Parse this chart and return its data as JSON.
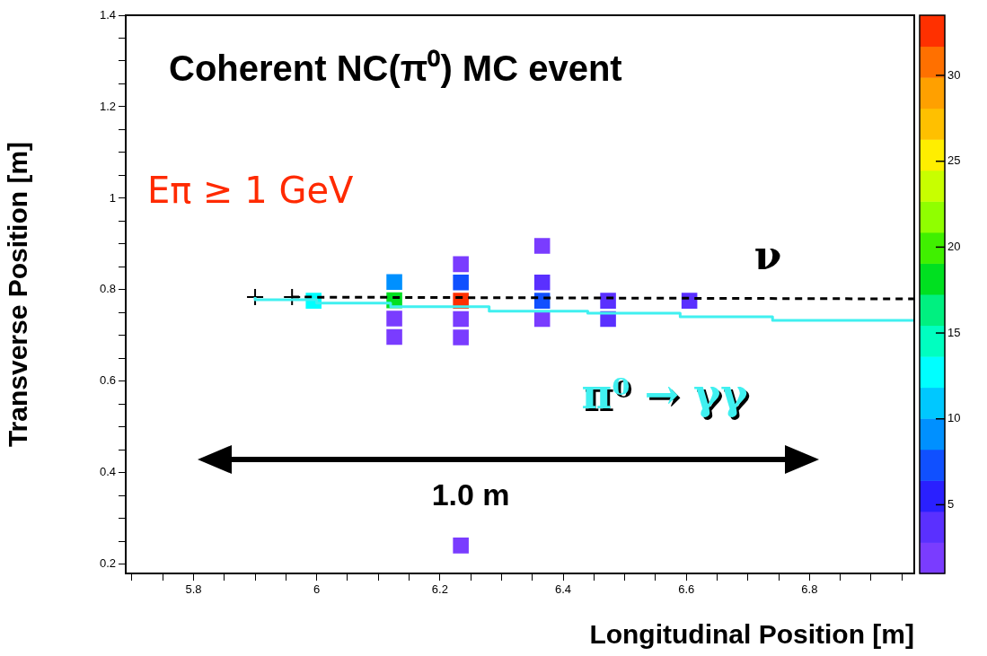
{
  "chart_data": {
    "type": "scatter",
    "title": "Coherent NC(π⁰) MC event",
    "xlabel": "Longitudinal Position [m]",
    "ylabel": "Transverse Position [m]",
    "xlim": [
      5.69,
      6.97
    ],
    "xticks": [
      {
        "value": 5.7,
        "label": null
      },
      {
        "value": 5.75,
        "label": null
      },
      5.8,
      {
        "value": 5.85,
        "label": null
      },
      {
        "value": 5.9,
        "label": null
      },
      {
        "value": 5.95,
        "label": null
      },
      6,
      {
        "value": 6.05,
        "label": null
      },
      {
        "value": 6.1,
        "label": null
      },
      {
        "value": 6.15,
        "label": null
      },
      6.2,
      {
        "value": 6.25,
        "label": null
      },
      {
        "value": 6.3,
        "label": null
      },
      {
        "value": 6.35,
        "label": null
      },
      6.4,
      {
        "value": 6.45,
        "label": null
      },
      {
        "value": 6.5,
        "label": null
      },
      {
        "value": 6.55,
        "label": null
      },
      6.6,
      {
        "value": 6.65,
        "label": null
      },
      {
        "value": 6.7,
        "label": null
      },
      {
        "value": 6.75,
        "label": null
      },
      6.8,
      {
        "value": 6.85,
        "label": null
      },
      {
        "value": 6.9,
        "label": null
      },
      {
        "value": 6.95,
        "label": null
      }
    ],
    "ylim": [
      0.18,
      1.4
    ],
    "yticks": [
      0.2,
      {
        "value": 0.25,
        "label": null
      },
      {
        "value": 0.3,
        "label": null
      },
      {
        "value": 0.35,
        "label": null
      },
      0.4,
      {
        "value": 0.45,
        "label": null
      },
      {
        "value": 0.5,
        "label": null
      },
      {
        "value": 0.55,
        "label": null
      },
      0.6,
      {
        "value": 0.65,
        "label": null
      },
      {
        "value": 0.7,
        "label": null
      },
      {
        "value": 0.75,
        "label": null
      },
      0.8,
      {
        "value": 0.85,
        "label": null
      },
      {
        "value": 0.9,
        "label": null
      },
      {
        "value": 0.95,
        "label": null
      },
      1,
      {
        "value": 1.05,
        "label": null
      },
      {
        "value": 1.1,
        "label": null
      },
      {
        "value": 1.15,
        "label": null
      },
      1.2,
      {
        "value": 1.25,
        "label": null
      },
      {
        "value": 1.3,
        "label": null
      },
      {
        "value": 1.35,
        "label": null
      },
      1.4
    ],
    "clim": [
      1,
      33.5
    ],
    "cticks": [
      5,
      10,
      15,
      20,
      25,
      30
    ],
    "grid": false,
    "legend": false,
    "series": [
      {
        "type": "step",
        "name": "π⁰ → γγ",
        "color": "#40f0f0",
        "x": [
          5.9,
          6.0,
          6.12,
          6.28,
          6.44,
          6.59,
          6.74,
          6.9,
          6.97
        ],
        "values": [
          0.784,
          0.778,
          0.771,
          0.763,
          0.753,
          0.749,
          0.741,
          0.733,
          0.733
        ]
      },
      {
        "type": "line",
        "name": "ν",
        "color": "#000000",
        "line_style": "dashed",
        "marker": "none",
        "x": [
          5.96,
          6.97
        ],
        "values": [
          0.784,
          0.78
        ]
      },
      {
        "marker": "square",
        "colors": [
          "#00ffff",
          "#0090ff",
          "#00e020",
          "#7a3cff",
          "#7a3cff",
          "#7a3cff",
          "#1050ff",
          "#ff3000",
          "#7a3cff",
          "#7a3cff",
          "#7a3cff",
          "#7a3cff",
          "#5a30ff",
          "#1050ff",
          "#7a3cff",
          "#5a30ff",
          "#5a30ff",
          "#5a30ff"
        ],
        "x": [
          5.995,
          6.126,
          6.126,
          6.126,
          6.126,
          6.234,
          6.234,
          6.234,
          6.234,
          6.234,
          6.234,
          6.366,
          6.366,
          6.366,
          6.366,
          6.473,
          6.473,
          6.605
        ],
        "values": [
          0.776,
          0.817,
          0.777,
          0.737,
          0.697,
          0.856,
          0.816,
          0.776,
          0.736,
          0.696,
          0.241,
          0.896,
          0.816,
          0.776,
          0.736,
          0.776,
          0.736,
          0.776
        ],
        "cvalues": [
          12,
          10,
          19,
          2,
          2,
          2,
          7,
          33,
          2,
          2,
          2,
          2,
          4,
          7,
          2,
          3,
          4,
          4
        ]
      },
      {
        "type": "scatter",
        "marker": "cross",
        "color": "#000000",
        "x": [
          5.9,
          5.96
        ],
        "values": [
          0.784,
          0.784
        ]
      }
    ],
    "annotations": [
      "Eπ ≥ 1 GeV",
      "1.0 m"
    ]
  }
}
